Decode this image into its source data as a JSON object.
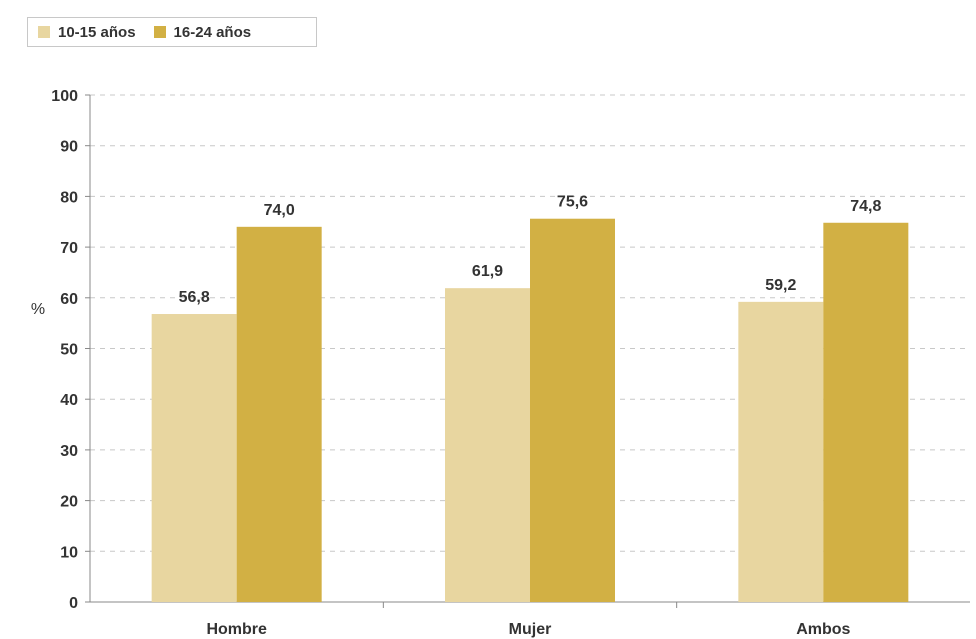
{
  "chart_data": {
    "type": "bar",
    "categories": [
      "Hombre",
      "Mujer",
      "Ambos"
    ],
    "series": [
      {
        "name": "10-15 años",
        "values": [
          56.8,
          61.9,
          59.2
        ],
        "labels": [
          "56,8",
          "61,9",
          "59,2"
        ],
        "color": "#e8d6a0"
      },
      {
        "name": "16-24 años",
        "values": [
          74.0,
          75.6,
          74.8
        ],
        "labels": [
          "74,0",
          "75,6",
          "74,8"
        ],
        "color": "#d2b044"
      }
    ],
    "ylabel": "%",
    "ylim": [
      0,
      100
    ],
    "yticks": [
      0,
      10,
      20,
      30,
      40,
      50,
      60,
      70,
      80,
      90,
      100
    ],
    "grid": true,
    "legend": "top-left"
  }
}
